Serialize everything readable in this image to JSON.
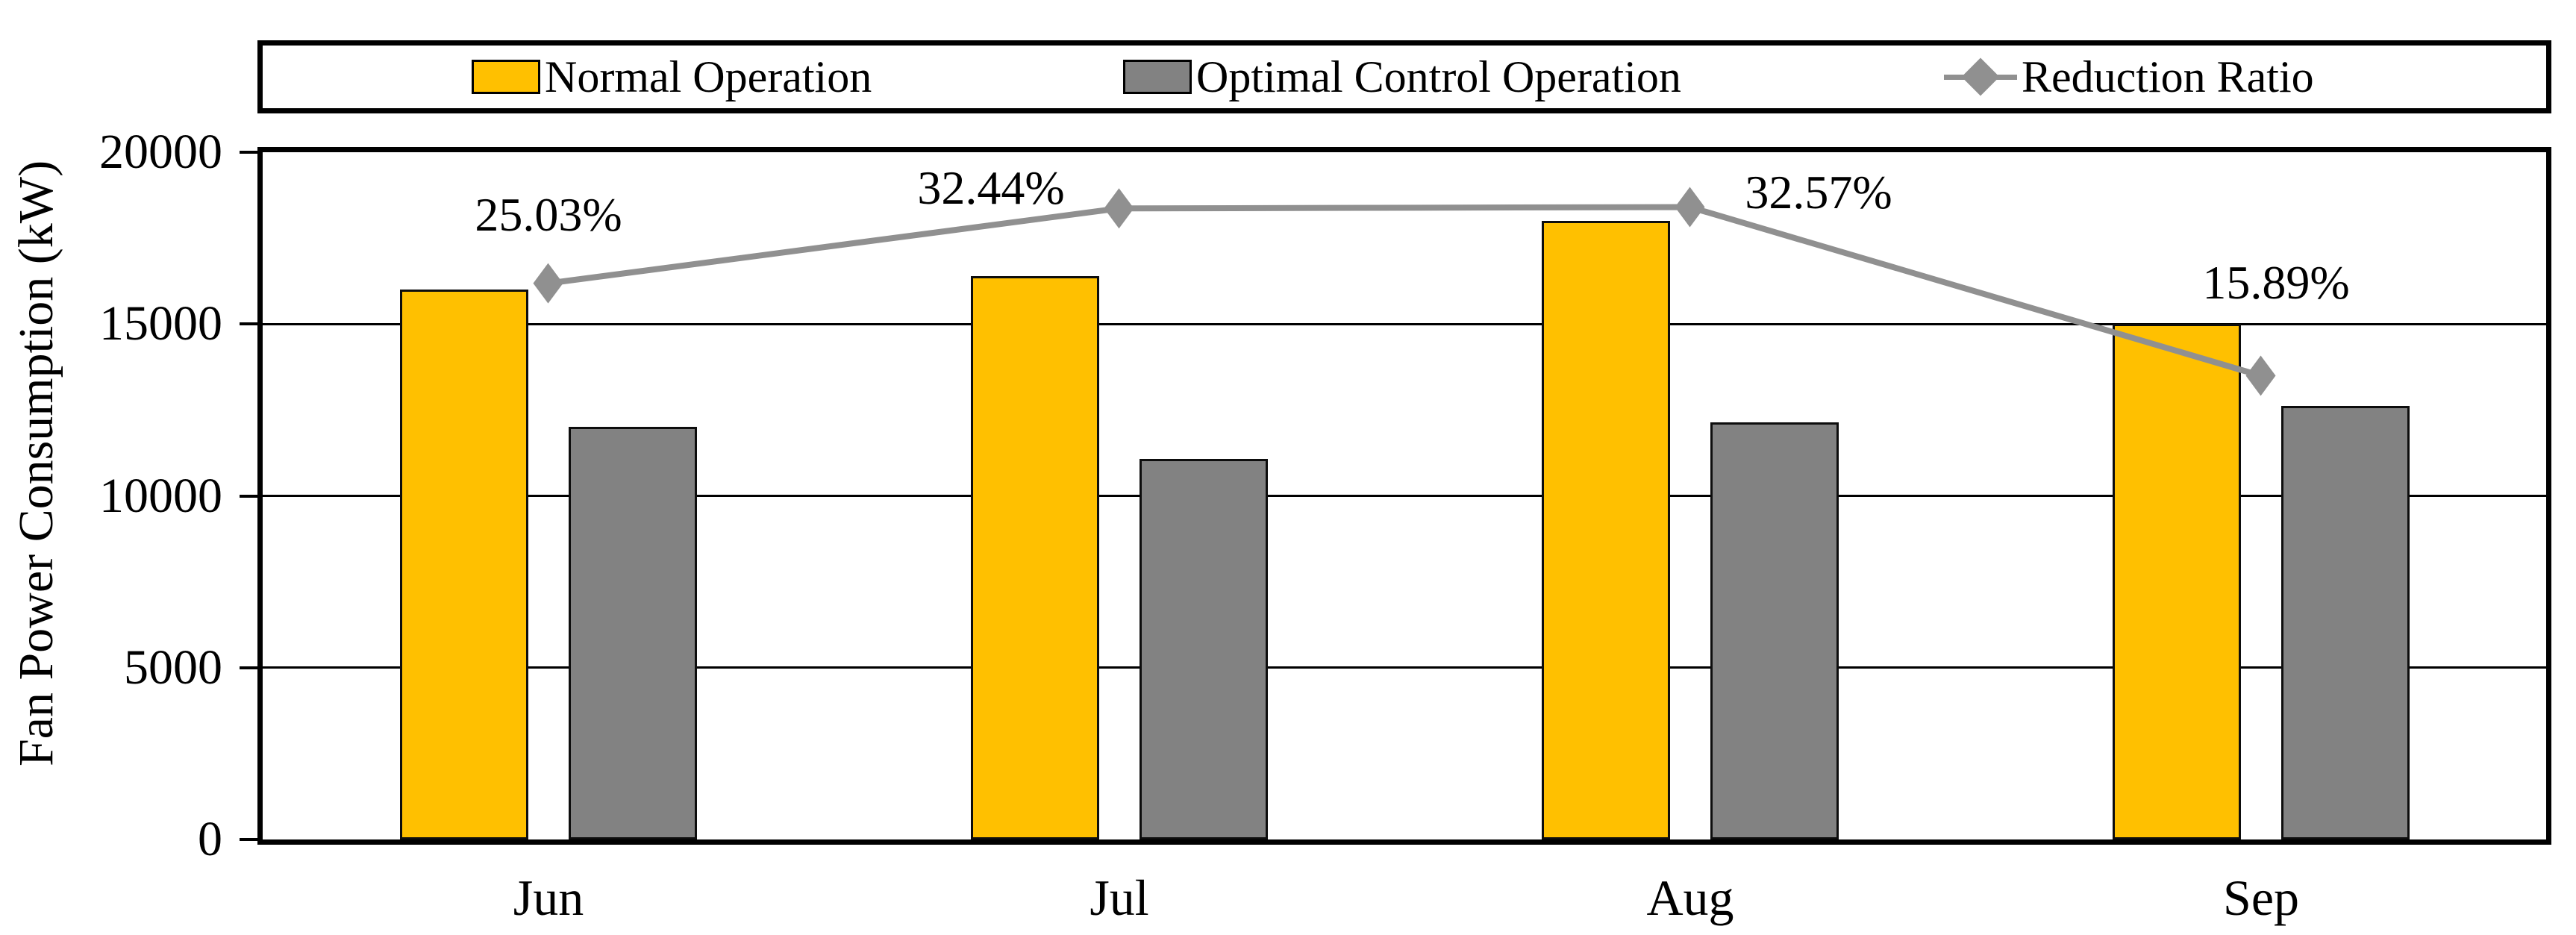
{
  "chart_data": {
    "type": "bar",
    "subtype": "clustered-bar-with-line-combo",
    "categories": [
      "Jun",
      "Jul",
      "Aug",
      "Sep"
    ],
    "series": [
      {
        "name": "Normal Operation",
        "type": "bar",
        "color": "#FFC000",
        "values": [
          16000,
          16400,
          18000,
          15000
        ]
      },
      {
        "name": "Optimal Control Operation",
        "type": "bar",
        "color": "#828282",
        "values": [
          12000,
          11080,
          12140,
          12620
        ]
      },
      {
        "name": "Reduction Ratio",
        "type": "line",
        "color": "#909090",
        "marker": "diamond",
        "values_percent": [
          25.03,
          32.44,
          32.57,
          15.89
        ],
        "point_labels": [
          "25.03%",
          "32.44%",
          "32.57%",
          "15.89%"
        ]
      }
    ],
    "title": "",
    "xlabel": "",
    "ylabel": "Fan Power Consumption (kW)",
    "y_axis": {
      "min": 0,
      "max": 20000,
      "tick_step": 5000,
      "tick_labels": [
        "0",
        "5000",
        "10000",
        "15000",
        "20000"
      ]
    },
    "secondary_axis": {
      "hidden": true,
      "min": -30,
      "max": 38
    },
    "legend_position": "top",
    "grid": true,
    "plot_border": true,
    "background": "#ffffff",
    "text_color": "#000000"
  }
}
